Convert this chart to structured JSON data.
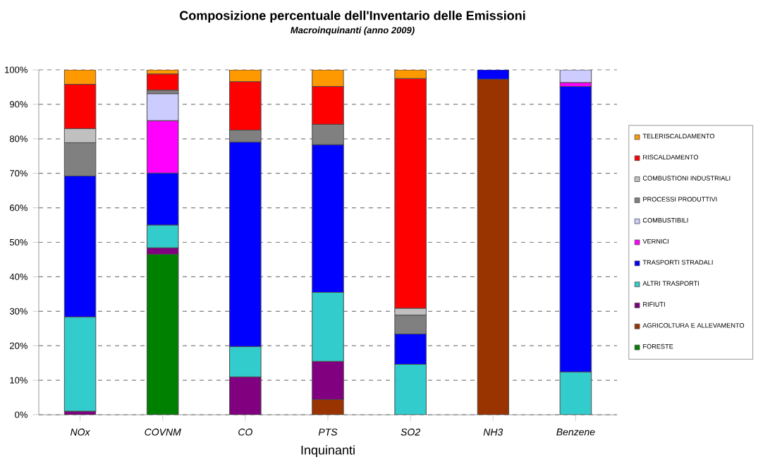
{
  "chart_data": {
    "type": "bar",
    "stacked": true,
    "title": "Composizione percentuale dell'Inventario delle Emissioni",
    "subtitle": "Macroinquinanti (anno 2009)",
    "xlabel": "Inquinanti",
    "categories": [
      "NOx",
      "COVNM",
      "CO",
      "PTS",
      "SO2",
      "NH3",
      "Benzene"
    ],
    "ylim": [
      0,
      100
    ],
    "yticks": [
      {
        "value": 0,
        "label": "0%"
      },
      {
        "value": 10,
        "label": "10%"
      },
      {
        "value": 20,
        "label": "20%"
      },
      {
        "value": 30,
        "label": "30%"
      },
      {
        "value": 40,
        "label": "40%"
      },
      {
        "value": 50,
        "label": "50%"
      },
      {
        "value": 60,
        "label": "60%"
      },
      {
        "value": 70,
        "label": "70%"
      },
      {
        "value": 80,
        "label": "80%"
      },
      {
        "value": 90,
        "label": "90%"
      },
      {
        "value": 100,
        "label": "100%"
      }
    ],
    "grid": "y",
    "legend": "right",
    "series": [
      {
        "name": "FORESTE",
        "color": "#008000",
        "values": [
          null,
          46.5,
          null,
          null,
          null,
          null,
          null
        ]
      },
      {
        "name": "AGRICOLTURA E ALLEVAMENTO",
        "color": "#993300",
        "values": [
          null,
          null,
          null,
          4.4,
          null,
          97.3,
          null
        ]
      },
      {
        "name": "RIFIUTI",
        "color": "#800080",
        "values": [
          1,
          1.9,
          11.0,
          11.1,
          null,
          null,
          null
        ]
      },
      {
        "name": "ALTRI TRASPORTI",
        "color": "#33CCCC",
        "values": [
          27.4,
          6.6,
          8.8,
          20.0,
          14.6,
          null,
          12.4
        ]
      },
      {
        "name": "TRASPORTI STRADALI",
        "color": "#0000FF",
        "values": [
          40.8,
          15.1,
          59.3,
          42.8,
          8.8,
          2.7,
          82.8
        ]
      },
      {
        "name": "VERNICI",
        "color": "#FF00FF",
        "values": [
          null,
          15.2,
          null,
          null,
          null,
          null,
          1.1
        ]
      },
      {
        "name": "COMBUSTIBILI",
        "color": "#CCCCFF",
        "values": [
          null,
          7.8,
          null,
          null,
          null,
          null,
          3.7
        ]
      },
      {
        "name": "PROCESSI PRODUTTIVI",
        "color": "#808080",
        "values": [
          9.7,
          1.0,
          3.4,
          5.9,
          5.5,
          null,
          null
        ]
      },
      {
        "name": "COMBUSTIONI INDUSTRIALI",
        "color": "#C0C0C0",
        "values": [
          4.1,
          null,
          null,
          null,
          2.0,
          null,
          null
        ]
      },
      {
        "name": "RISCALDAMENTO",
        "color": "#FF0000",
        "values": [
          12.8,
          4.7,
          14.1,
          11.0,
          66.6,
          null,
          null
        ]
      },
      {
        "name": "TELERISCALDAMENTO",
        "color": "#FF9900",
        "values": [
          4.2,
          1.2,
          3.4,
          4.8,
          2.5,
          null,
          null
        ]
      }
    ]
  }
}
